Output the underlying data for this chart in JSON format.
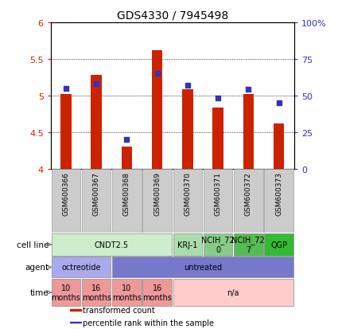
{
  "title": "GDS4330 / 7945498",
  "samples": [
    "GSM600366",
    "GSM600367",
    "GSM600368",
    "GSM600369",
    "GSM600370",
    "GSM600371",
    "GSM600372",
    "GSM600373"
  ],
  "transformed_counts": [
    5.02,
    5.28,
    4.3,
    5.62,
    5.08,
    4.83,
    5.02,
    4.62
  ],
  "percentile_ranks": [
    55,
    58,
    20,
    65,
    57,
    48,
    54,
    45
  ],
  "ylim": [
    4.0,
    6.0
  ],
  "yticks": [
    4.0,
    4.5,
    5.0,
    5.5,
    6.0
  ],
  "ytick_labels": [
    "4",
    "4.5",
    "5",
    "5.5",
    "6"
  ],
  "y2lim": [
    0,
    100
  ],
  "y2ticks": [
    0,
    25,
    50,
    75,
    100
  ],
  "y2tick_labels": [
    "0",
    "25",
    "50",
    "75",
    "100%"
  ],
  "bar_color": "#cc2200",
  "dot_color": "#3333bb",
  "bar_bottom": 4.0,
  "cell_line_groups": [
    {
      "label": "CNDT2.5",
      "start": 0,
      "end": 3,
      "color": "#cceecc"
    },
    {
      "label": "KRJ-1",
      "start": 4,
      "end": 4,
      "color": "#aaddaa"
    },
    {
      "label": "NCIH_72\n0",
      "start": 5,
      "end": 5,
      "color": "#88cc88"
    },
    {
      "label": "NCIH_72\n7",
      "start": 6,
      "end": 6,
      "color": "#55bb55"
    },
    {
      "label": "QGP",
      "start": 7,
      "end": 7,
      "color": "#33bb33"
    }
  ],
  "agent_groups": [
    {
      "label": "octreotide",
      "start": 0,
      "end": 1,
      "color": "#aaaaee"
    },
    {
      "label": "untreated",
      "start": 2,
      "end": 7,
      "color": "#7777cc"
    }
  ],
  "time_groups": [
    {
      "label": "10\nmonths",
      "start": 0,
      "end": 0,
      "color": "#ee9999"
    },
    {
      "label": "16\nmonths",
      "start": 1,
      "end": 1,
      "color": "#ee9999"
    },
    {
      "label": "10\nmonths",
      "start": 2,
      "end": 2,
      "color": "#ee9999"
    },
    {
      "label": "16\nmonths",
      "start": 3,
      "end": 3,
      "color": "#ee9999"
    },
    {
      "label": "n/a",
      "start": 4,
      "end": 7,
      "color": "#ffcccc"
    }
  ],
  "legend_items": [
    {
      "label": "transformed count",
      "color": "#cc2200"
    },
    {
      "label": "percentile rank within the sample",
      "color": "#3333bb"
    }
  ]
}
